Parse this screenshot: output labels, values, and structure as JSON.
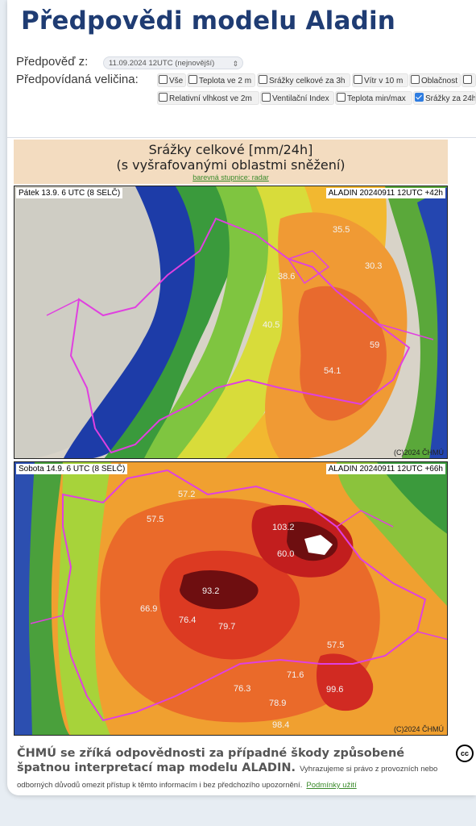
{
  "header": {
    "title": "Předpovědi modelu Aladin"
  },
  "form": {
    "forecast_from_label": "Předpověď z:",
    "forecast_from_value": "11.09.2024 12UTC (nejnovější)",
    "quantity_label": "Předpovídaná veličina:",
    "options": [
      {
        "label": "Vše",
        "checked": false
      },
      {
        "label": "Teplota ve 2 m",
        "checked": false
      },
      {
        "label": "Srážky celkové za 3h",
        "checked": false
      },
      {
        "label": "Vítr v 10 m",
        "checked": false
      },
      {
        "label": "Oblačnost",
        "checked": false
      },
      {
        "label": "",
        "checked": false
      },
      {
        "label": "Relativní vlhkost ve 2m",
        "checked": false
      },
      {
        "label": "Ventilační Index",
        "checked": false
      },
      {
        "label": "Teplota min/max",
        "checked": false
      },
      {
        "label": "Srážky za 24h",
        "checked": true
      }
    ]
  },
  "map_header": {
    "line1": "Srážky celkové [mm/24h]",
    "line2": "(s vyšrafovanými oblastmi sněžení)",
    "scale_link": "barevná stupnice: radar"
  },
  "panels": [
    {
      "date_label": "Pátek 13.9. 6 UTC (8 SELČ)",
      "run_label": "ALADIN 20240911 12UTC +42h",
      "copyright": "(C)2024 ČHMÚ",
      "values": [
        "35.5",
        "38.6",
        "30.3",
        "40.5",
        "59",
        "54.1"
      ]
    },
    {
      "date_label": "Sobota 14.9. 6 UTC (8 SELČ)",
      "run_label": "ALADIN 20240911 12UTC +66h",
      "copyright": "(C)2024 ČHMÚ",
      "values": [
        "57.2",
        "57.5",
        "103.2",
        "60.0",
        "93.2",
        "76.4",
        "79.7",
        "66.9",
        "71.6",
        "99.6",
        "76.3",
        "78.9",
        "98.4",
        "57.5"
      ]
    }
  ],
  "footer": {
    "disclaimer_bold": "ČHMÚ se zříká odpovědnosti za případné škody způsobené špatnou interpretací map modelu ALADIN.",
    "disclaimer_small": "Vyhrazujeme si právo z provozních nebo odborných důvodů omezit přístup k těmto informacím i bez předchozího upozornění.",
    "terms_link": "Podmínky užití",
    "license_badge": "cc"
  }
}
